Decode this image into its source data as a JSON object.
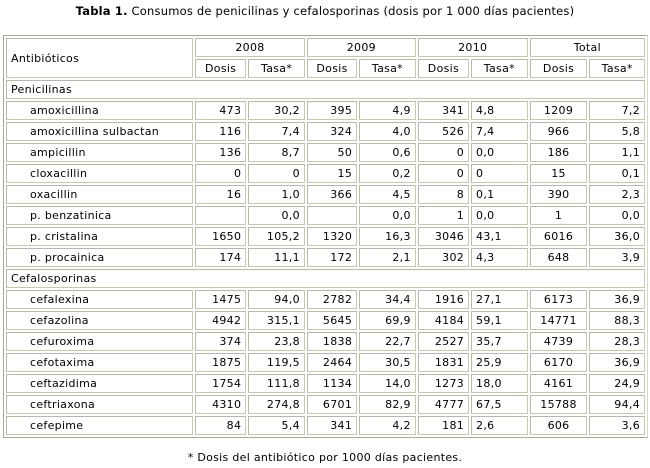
{
  "title": {
    "label": "Tabla 1.",
    "text": " Consumos de penicilinas y cefalosporinas (dosis por 1 000 días pacientes)"
  },
  "header": {
    "first_col": "Antibióticos",
    "years": [
      "2008",
      "2009",
      "2010",
      "Total"
    ],
    "sub": [
      "Dosis",
      "Tasa*"
    ]
  },
  "groups": [
    {
      "name": "Penicilinas",
      "rows": [
        [
          "amoxicillina",
          "473",
          "30,2",
          "395",
          "4,9",
          "341",
          "4,8",
          "1209",
          "7,2"
        ],
        [
          "amoxicillina sulbactan",
          "116",
          "7,4",
          "324",
          "4,0",
          "526",
          "7,4",
          "966",
          "5,8"
        ],
        [
          "ampicillin",
          "136",
          "8,7",
          "50",
          "0,6",
          "0",
          "0,0",
          "186",
          "1,1"
        ],
        [
          "cloxacillin",
          "0",
          "0",
          "15",
          "0,2",
          "0",
          "0",
          "15",
          "0,1"
        ],
        [
          "oxacillin",
          "16",
          "1,0",
          "366",
          "4,5",
          "8",
          "0,1",
          "390",
          "2,3"
        ],
        [
          "p. benzatinica",
          "",
          "0,0",
          "",
          "0,0",
          "1",
          "0,0",
          "1",
          "0,0"
        ],
        [
          "p. cristalina",
          "1650",
          "105,2",
          "1320",
          "16,3",
          "3046",
          "43,1",
          "6016",
          "36,0"
        ],
        [
          "p. procainica",
          "174",
          "11,1",
          "172",
          "2,1",
          "302",
          "4,3",
          "648",
          "3,9"
        ]
      ]
    },
    {
      "name": "Cefalosporinas",
      "rows": [
        [
          "cefalexina",
          "1475",
          "94,0",
          "2782",
          "34,4",
          "1916",
          "27,1",
          "6173",
          "36,9"
        ],
        [
          "cefazolina",
          "4942",
          "315,1",
          "5645",
          "69,9",
          "4184",
          "59,1",
          "14771",
          "88,3"
        ],
        [
          "cefuroxima",
          "374",
          "23,8",
          "1838",
          "22,7",
          "2527",
          "35,7",
          "4739",
          "28,3"
        ],
        [
          "cefotaxima",
          "1875",
          "119,5",
          "2464",
          "30,5",
          "1831",
          "25,9",
          "6170",
          "36,9"
        ],
        [
          "ceftazidima",
          "1754",
          "111,8",
          "1134",
          "14,0",
          "1273",
          "18,0",
          "4161",
          "24,9"
        ],
        [
          "ceftriaxona",
          "4310",
          "274,8",
          "6701",
          "82,9",
          "4777",
          "67,5",
          "15788",
          "94,4"
        ],
        [
          "cefepime",
          "84",
          "5,4",
          "341",
          "4,2",
          "181",
          "2,6",
          "606",
          "3,6"
        ]
      ]
    }
  ],
  "footnote": "* Dosis del antibiótico por 1000 días pacientes."
}
